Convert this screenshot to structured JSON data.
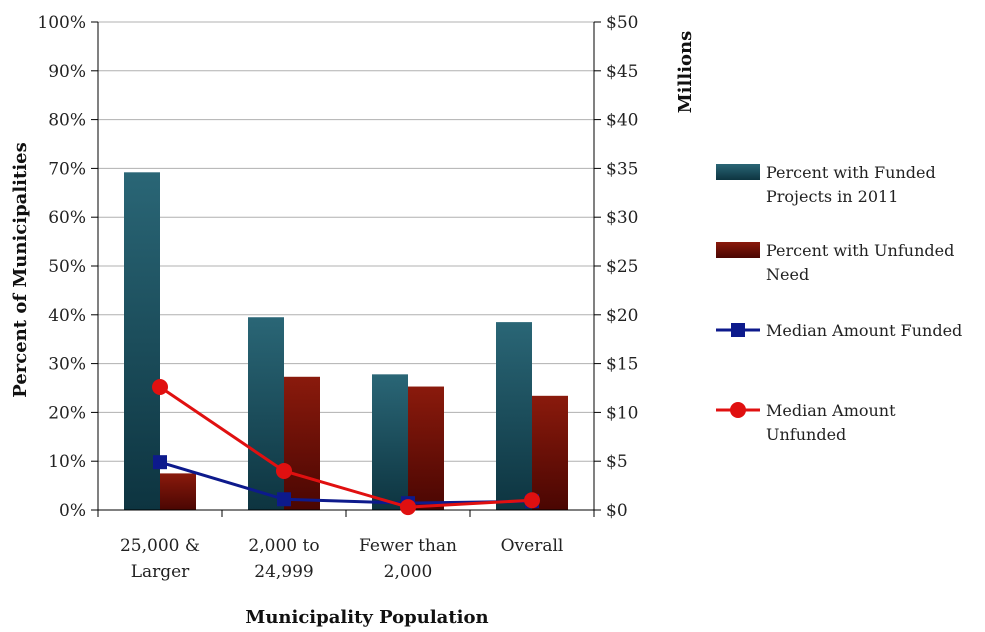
{
  "chart_data": {
    "type": "bar",
    "categories": [
      [
        "25,000 &",
        "Larger"
      ],
      [
        "2,000 to",
        "24,999"
      ],
      [
        "Fewer than",
        "2,000"
      ],
      [
        "Overall"
      ]
    ],
    "xlabel": "Municipality Population",
    "ylabel": "Percent of Municipalities",
    "y2label": "Millions",
    "ylim": [
      0,
      100
    ],
    "y2lim": [
      0,
      50
    ],
    "yticks": [
      "0%",
      "10%",
      "20%",
      "30%",
      "40%",
      "50%",
      "60%",
      "70%",
      "80%",
      "90%",
      "100%"
    ],
    "y2ticks": [
      "$0",
      "$5",
      "$10",
      "$15",
      "$20",
      "$25",
      "$30",
      "$35",
      "$40",
      "$45",
      "$50"
    ],
    "grid": true,
    "legend_position": "right",
    "series": [
      {
        "name": [
          "Percent with Funded",
          "Projects in 2011"
        ],
        "type": "bar",
        "axis": "left",
        "color": "#1f5a6a",
        "values": [
          69.2,
          39.5,
          27.8,
          38.5
        ]
      },
      {
        "name": [
          "Percent with Unfunded",
          "Need"
        ],
        "type": "bar",
        "axis": "left",
        "color": "#7a1206",
        "values": [
          7.5,
          27.3,
          25.3,
          23.4
        ]
      },
      {
        "name": [
          "Median Amount Funded"
        ],
        "type": "line",
        "axis": "right",
        "marker": "square",
        "color": "#0d1a8c",
        "values": [
          4.9,
          1.1,
          0.7,
          0.9
        ]
      },
      {
        "name": [
          "Median Amount",
          "Unfunded"
        ],
        "type": "line",
        "axis": "right",
        "marker": "circle",
        "color": "#e01010",
        "values": [
          12.6,
          4.0,
          0.3,
          1.0
        ]
      }
    ]
  }
}
